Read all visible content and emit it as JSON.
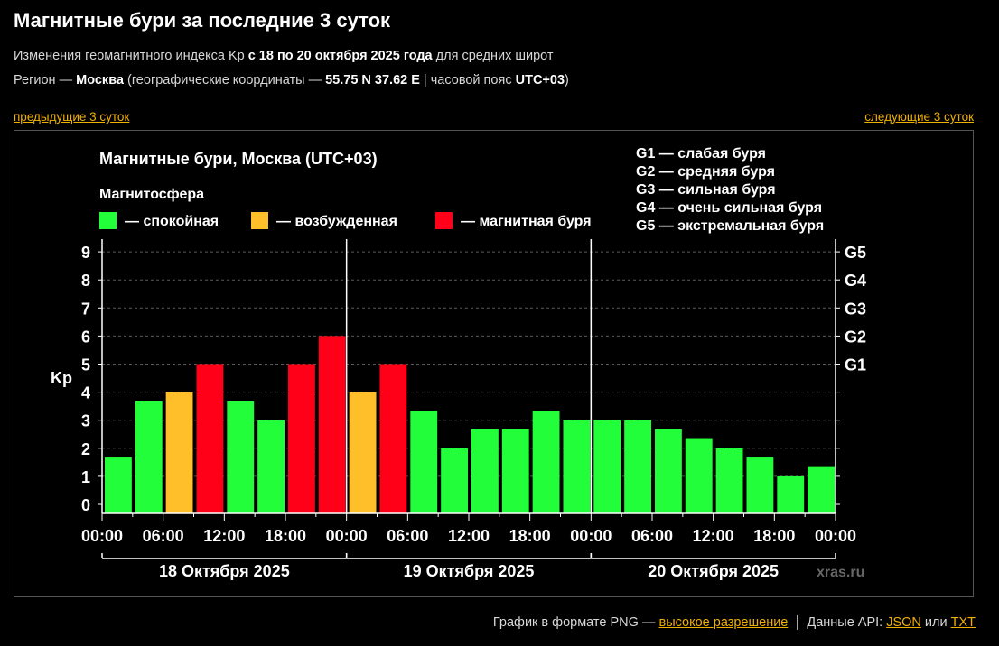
{
  "page": {
    "title": "Магнитные бури за последние 3 суток",
    "sub1": {
      "prefix": "Изменения геомагнитного индекса Kp ",
      "bold": "с 18 по 20 октября 2025 года",
      "suffix": " для средних широт"
    },
    "sub2": {
      "prefix": "Регион — ",
      "city": "Москва",
      "mid": " (географические координаты — ",
      "coords": "55.75 N 37.62 E",
      "tz_prefix": " | часовой пояс ",
      "tz": "UTC+03",
      "suffix": ")"
    },
    "nav": {
      "prev": "предыдущие 3 суток",
      "next": "следующие 3 суток"
    },
    "footer": {
      "png_text": "График в формате PNG — ",
      "png_link": "высокое разрешение",
      "api_text": "Данные API: ",
      "json_link": "JSON",
      "or_text": " или ",
      "txt_link": "TXT"
    }
  },
  "chart_data": {
    "type": "bar",
    "title": "Магнитные бури, Москва (UTC+03)",
    "legend_title": "Магнитосфера",
    "legend": [
      {
        "key": "calm",
        "label": "— спокойная",
        "color": "#22ff3a"
      },
      {
        "key": "excited",
        "label": "— возбужденная",
        "color": "#ffbf2a"
      },
      {
        "key": "storm",
        "label": "— магнитная буря",
        "color": "#ff0018"
      }
    ],
    "g_legend": [
      "G1 — слабая буря",
      "G2 — средняя буря",
      "G3 — сильная буря",
      "G4 — очень сильная буря",
      "G5 — экстремальная буря"
    ],
    "ylabel": "Kp",
    "ylim": [
      0,
      9
    ],
    "yticks": [
      "0",
      "1",
      "2",
      "3",
      "4",
      "5",
      "6",
      "7",
      "8",
      "9"
    ],
    "right_ticks": [
      {
        "value": 5,
        "label": "G1"
      },
      {
        "value": 6,
        "label": "G2"
      },
      {
        "value": 7,
        "label": "G3"
      },
      {
        "value": 8,
        "label": "G4"
      },
      {
        "value": 9,
        "label": "G5"
      }
    ],
    "xticks": [
      "00:00",
      "06:00",
      "12:00",
      "18:00",
      "00:00",
      "06:00",
      "12:00",
      "18:00",
      "00:00",
      "06:00",
      "12:00",
      "18:00",
      "00:00"
    ],
    "days": [
      "18 Октября 2025",
      "19 Октября 2025",
      "20 Октября 2025"
    ],
    "values": [
      1.67,
      3.67,
      4.0,
      5.0,
      3.67,
      3.0,
      5.0,
      6.0,
      4.0,
      5.0,
      3.33,
      2.0,
      2.67,
      2.67,
      3.33,
      3.0,
      3.0,
      3.0,
      2.67,
      2.33,
      2.0,
      1.67,
      1.0,
      1.33
    ],
    "levels": [
      "calm",
      "calm",
      "excited",
      "storm",
      "calm",
      "calm",
      "storm",
      "storm",
      "excited",
      "storm",
      "calm",
      "calm",
      "calm",
      "calm",
      "calm",
      "calm",
      "calm",
      "calm",
      "calm",
      "calm",
      "calm",
      "calm",
      "calm",
      "calm"
    ],
    "grid": true,
    "watermark": "xras.ru"
  }
}
